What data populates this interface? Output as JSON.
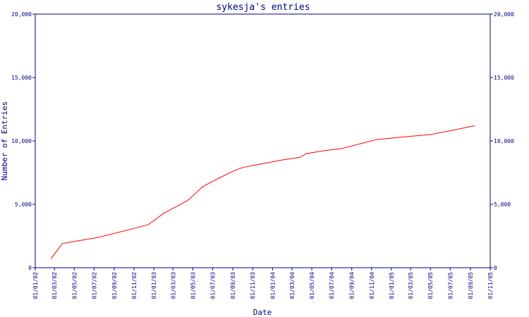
{
  "chart_data": {
    "type": "line",
    "title": "sykesja's entries",
    "xlabel": "Date",
    "ylabel": "Number of Entries",
    "x_ticks": [
      "01/01/02",
      "01/03/02",
      "01/05/02",
      "01/07/02",
      "01/09/02",
      "01/11/02",
      "01/01/03",
      "01/03/03",
      "01/05/03",
      "01/07/03",
      "01/09/03",
      "01/11/03",
      "01/01/04",
      "01/03/04",
      "01/05/04",
      "01/07/04",
      "01/09/04",
      "01/11/04",
      "01/01/05",
      "01/03/05",
      "01/05/05",
      "01/07/05",
      "01/09/05",
      "01/11/05"
    ],
    "y_ticks": [
      "0",
      "5,000",
      "10,000",
      "15,000",
      "20,000"
    ],
    "ylim": [
      0,
      20000
    ],
    "grid": false,
    "series": [
      {
        "color": "#ff0000",
        "points": [
          [
            "2002-02-18",
            700
          ],
          [
            "2002-03-25",
            1900
          ],
          [
            "2002-04-15",
            2000
          ],
          [
            "2002-06-01",
            2200
          ],
          [
            "2002-07-15",
            2400
          ],
          [
            "2002-09-01",
            2700
          ],
          [
            "2002-11-01",
            3100
          ],
          [
            "2002-12-15",
            3400
          ],
          [
            "2003-02-01",
            4300
          ],
          [
            "2003-04-15",
            5300
          ],
          [
            "2003-06-01",
            6400
          ],
          [
            "2003-07-15",
            7000
          ],
          [
            "2003-09-01",
            7600
          ],
          [
            "2003-10-01",
            7900
          ],
          [
            "2003-12-01",
            8200
          ],
          [
            "2004-02-01",
            8500
          ],
          [
            "2004-03-25",
            8700
          ],
          [
            "2004-04-15",
            9000
          ],
          [
            "2004-06-01",
            9200
          ],
          [
            "2004-08-01",
            9400
          ],
          [
            "2004-10-01",
            9800
          ],
          [
            "2004-11-15",
            10100
          ],
          [
            "2005-02-01",
            10300
          ],
          [
            "2005-05-01",
            10500
          ],
          [
            "2005-07-01",
            10800
          ],
          [
            "2005-09-15",
            11200
          ]
        ]
      }
    ]
  }
}
